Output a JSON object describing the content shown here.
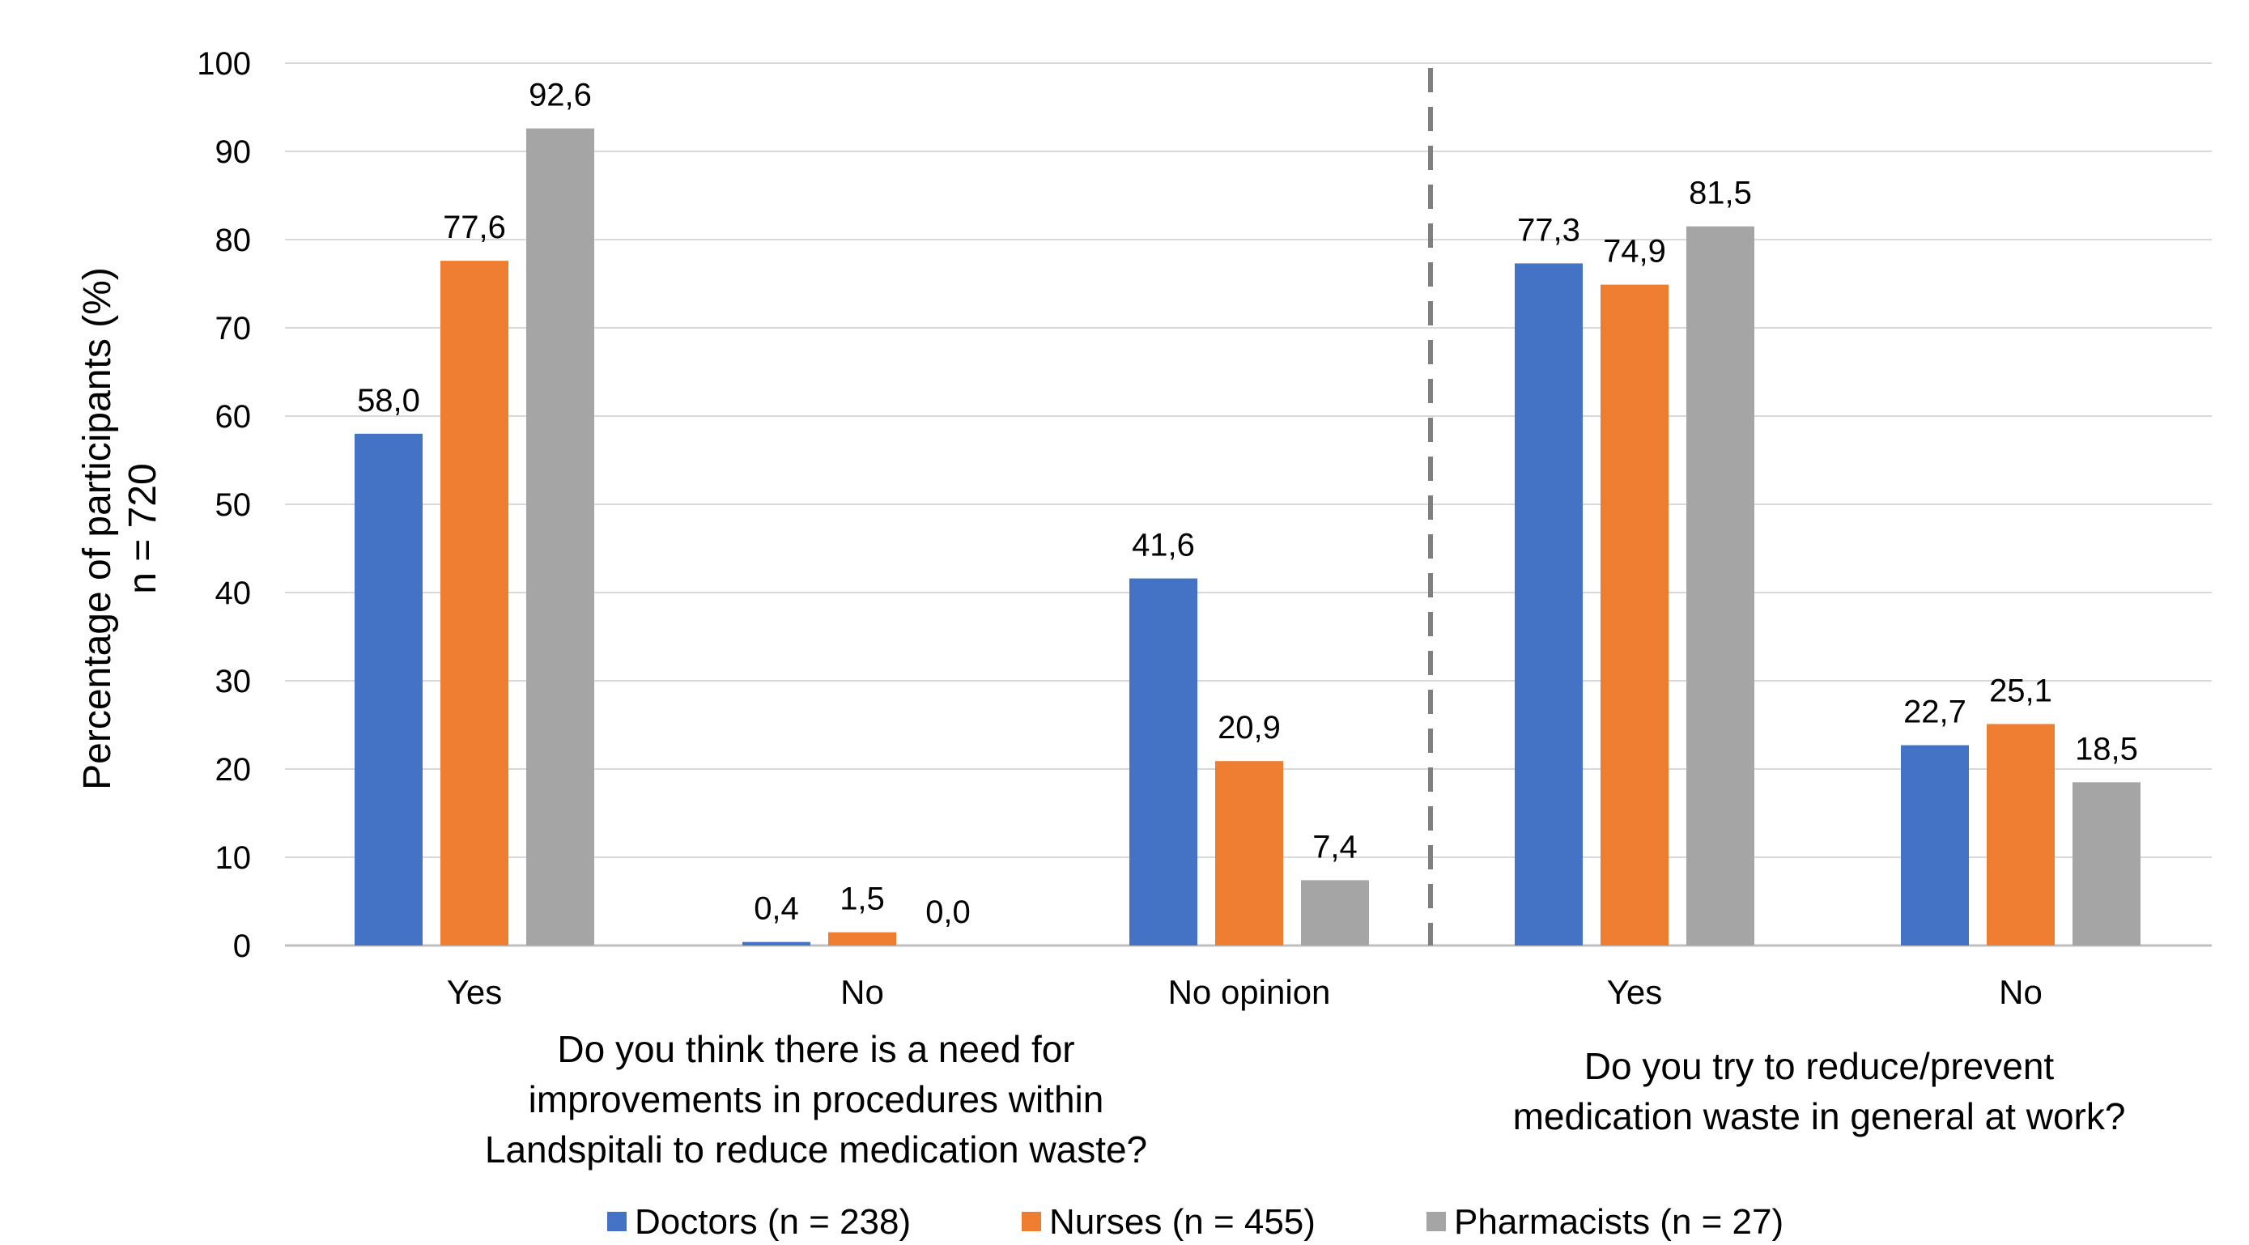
{
  "chart_data": {
    "type": "bar",
    "ylabel": [
      "Percentage of participants (%)",
      "n = 720"
    ],
    "ylim": [
      0,
      100
    ],
    "yticks": [
      "0",
      "10",
      "20",
      "30",
      "40",
      "50",
      "60",
      "70",
      "80",
      "90",
      "100"
    ],
    "grid": true,
    "legend_position": "bottom",
    "categories": [
      "Yes",
      "No",
      "No opinion",
      "Yes",
      "No"
    ],
    "groups": [
      {
        "title": [
          "Do you think there is a need for",
          "improvements in procedures within",
          "Landspitali to reduce medication waste?"
        ],
        "categories": [
          0,
          1,
          2
        ]
      },
      {
        "title": [
          "Do you try to reduce/prevent",
          "medication waste in general at work?"
        ],
        "categories": [
          3,
          4
        ]
      }
    ],
    "series": [
      {
        "name": "Doctors (n = 238)",
        "color": "#4472C4",
        "values": [
          58.0,
          0.4,
          41.6,
          77.3,
          22.7
        ],
        "labels": [
          "58,0",
          "0,4",
          "41,6",
          "77,3",
          "22,7"
        ]
      },
      {
        "name": "Nurses (n = 455)",
        "color": "#ED7D31",
        "values": [
          77.6,
          1.5,
          20.9,
          74.9,
          25.1
        ],
        "labels": [
          "77,6",
          "1,5",
          "20,9",
          "74,9",
          "25,1"
        ]
      },
      {
        "name": "Pharmacists (n = 27)",
        "color": "#A5A5A5",
        "values": [
          92.6,
          0.0,
          7.4,
          81.5,
          18.5
        ],
        "labels": [
          "92,6",
          "0,0",
          "7,4",
          "81,5",
          "18,5"
        ]
      }
    ],
    "separator": {
      "style": "dashed",
      "after_category": 2
    }
  }
}
